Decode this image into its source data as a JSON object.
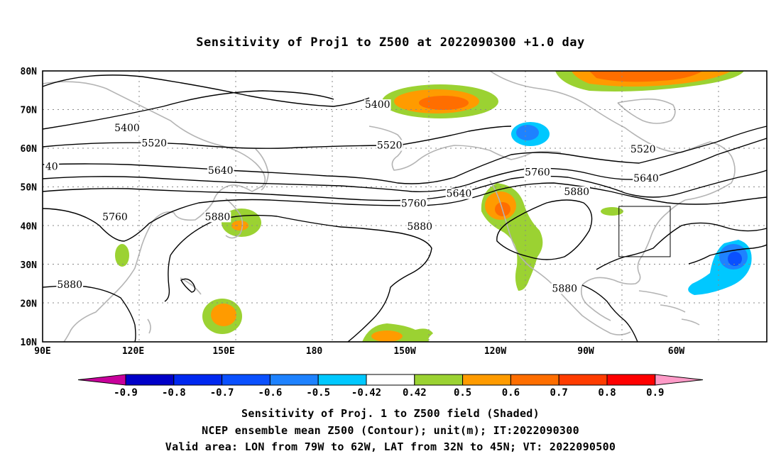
{
  "title": "Sensitivity of Proj1 to Z500 at 2022090300 +1.0 day",
  "map": {
    "lat_labels": [
      "80N",
      "70N",
      "60N",
      "50N",
      "40N",
      "30N",
      "20N",
      "10N"
    ],
    "lon_labels": [
      "90E",
      "120E",
      "150E",
      "180",
      "150W",
      "120W",
      "90W",
      "60W"
    ],
    "contour_labels": [
      {
        "text": "5400",
        "lon": 201,
        "lat": 71
      },
      {
        "text": "5400",
        "lon": 118,
        "lat": 65
      },
      {
        "text": "5520",
        "lon": 127,
        "lat": 61
      },
      {
        "text": "5520",
        "lon": 205,
        "lat": 60.5
      },
      {
        "text": "5520",
        "lon": 289,
        "lat": 59.5
      },
      {
        "text": "40",
        "lon": 93,
        "lat": 55
      },
      {
        "text": "5640",
        "lon": 149,
        "lat": 54
      },
      {
        "text": "5640",
        "lon": 228,
        "lat": 48
      },
      {
        "text": "5640",
        "lon": 290,
        "lat": 52
      },
      {
        "text": "5760",
        "lon": 254,
        "lat": 53.5
      },
      {
        "text": "5760",
        "lon": 213,
        "lat": 45.5
      },
      {
        "text": "5760",
        "lon": 114,
        "lat": 42
      },
      {
        "text": "5880",
        "lon": 267,
        "lat": 48.5
      },
      {
        "text": "5880",
        "lon": 148,
        "lat": 42
      },
      {
        "text": "5880",
        "lon": 215,
        "lat": 39.5
      },
      {
        "text": "5880",
        "lon": 99,
        "lat": 24.5
      },
      {
        "text": "5880",
        "lon": 263,
        "lat": 23.5
      }
    ],
    "valid_box": {
      "lon_min": 281,
      "lon_max": 298,
      "lat_min": 32,
      "lat_max": 45
    }
  },
  "colorbar": {
    "labels": [
      "-0.9",
      "-0.8",
      "-0.7",
      "-0.6",
      "-0.5",
      "-0.42",
      "0.42",
      "0.5",
      "0.6",
      "0.7",
      "0.8",
      "0.9"
    ],
    "colors": [
      "#0000c8",
      "#0028f0",
      "#0a50ff",
      "#1e82ff",
      "#00c8ff",
      "#ffffff",
      "#9bd232",
      "#ff9b00",
      "#ff6e00",
      "#ff3c00",
      "#ff0000"
    ],
    "low_color": "#c8009b",
    "high_color": "#ff9bc8"
  },
  "captions": [
    "Sensitivity of Proj. 1 to Z500 field (Shaded)",
    "NCEP ensemble mean Z500 (Contour); unit(m); IT:2022090300",
    "Valid area: LON from 79W to 62W, LAT from 32N to 45N; VT: 2022090500"
  ]
}
